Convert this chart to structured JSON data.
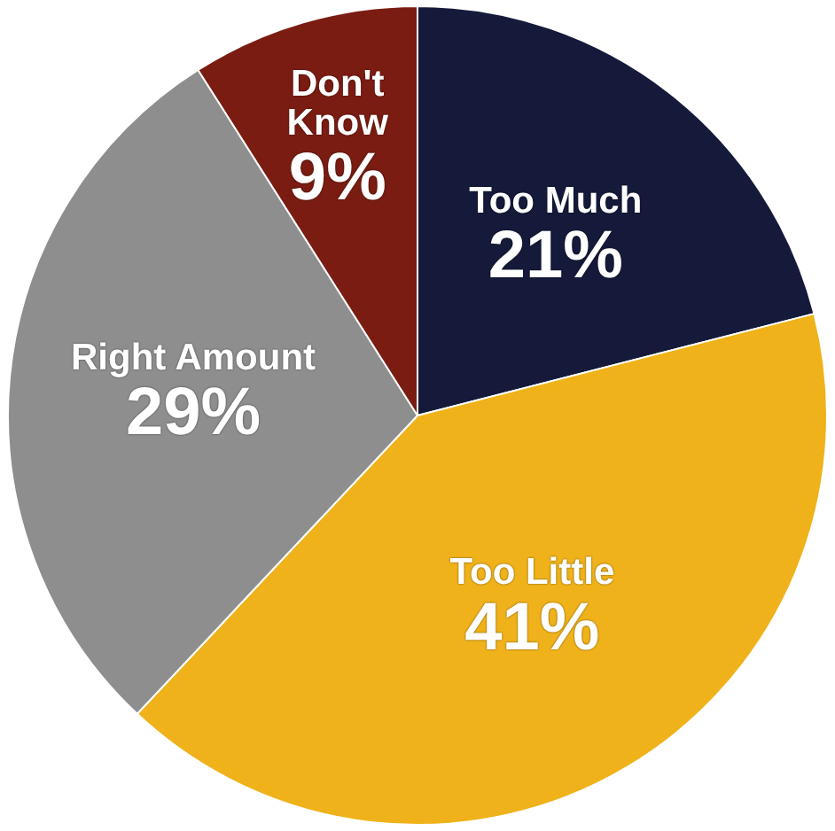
{
  "chart_data": {
    "type": "pie",
    "categories": [
      "Too Much",
      "Too Little",
      "Right Amount",
      "Don't Know"
    ],
    "values": [
      21,
      41,
      29,
      9
    ],
    "colors": [
      "#151a3a",
      "#f0b21a",
      "#8e8e8e",
      "#7a1c12"
    ],
    "value_labels": [
      "21%",
      "41%",
      "29%",
      "9%"
    ],
    "legend": false
  }
}
